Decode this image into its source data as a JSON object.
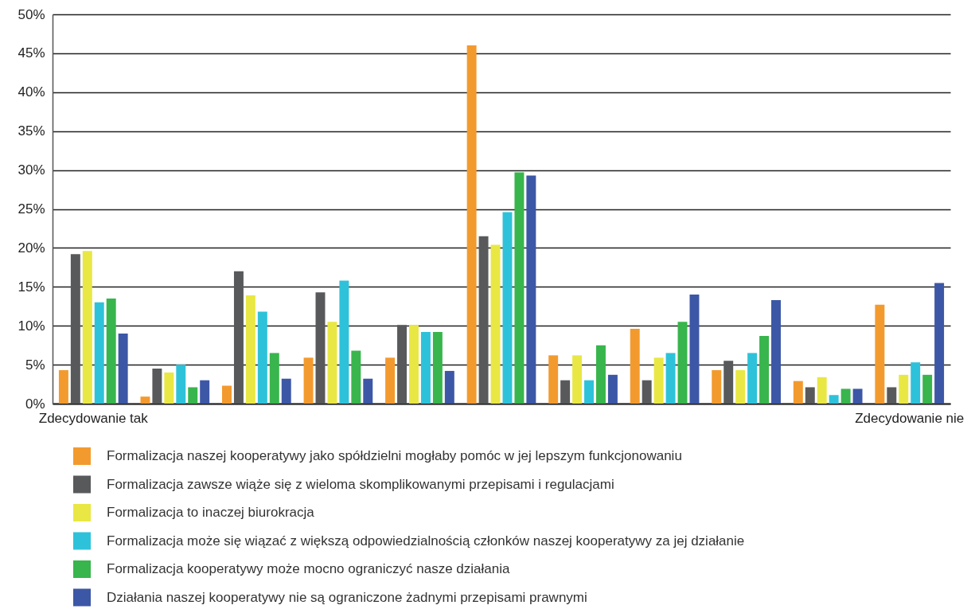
{
  "chart_data": {
    "type": "bar",
    "categories": [
      "Zdecydowanie tak",
      null,
      null,
      null,
      null,
      null,
      null,
      null,
      null,
      null,
      "Zdecydowanie nie"
    ],
    "series": [
      {
        "name": "Formalizacja naszej kooperatywy jako spółdzielni mogłaby pomóc w jej lepszym funkcjonowaniu",
        "color": "#f39a2e",
        "values": [
          4.3,
          0.9,
          2.3,
          5.9,
          5.9,
          46,
          6.2,
          9.6,
          4.3,
          2.9,
          12.7
        ]
      },
      {
        "name": "Formalizacja zawsze wiąże się z wieloma skomplikowanymi przepisami i regulacjami",
        "color": "#58595b",
        "values": [
          19.2,
          4.5,
          17,
          14.3,
          10.1,
          21.5,
          3,
          3,
          5.5,
          2.1,
          2.1
        ]
      },
      {
        "name": "Formalizacja to inaczej biurokracja",
        "color": "#e9e744",
        "values": [
          19.6,
          4,
          13.9,
          10.5,
          10.1,
          20.4,
          6.2,
          5.9,
          4.3,
          3.4,
          3.7
        ]
      },
      {
        "name": "Formalizacja może się wiązać z większą odpowiedzialnością członków naszej kooperatywy za jej działanie",
        "color": "#2ec2da",
        "values": [
          13,
          5,
          11.8,
          15.8,
          9.2,
          24.6,
          3,
          6.5,
          6.5,
          1.1,
          5.3
        ]
      },
      {
        "name": "Formalizacja kooperatywy może mocno ograniczyć nasze działania",
        "color": "#38b54c",
        "values": [
          13.5,
          2.1,
          6.5,
          6.8,
          9.2,
          29.7,
          7.5,
          10.5,
          8.7,
          1.9,
          3.7
        ]
      },
      {
        "name": "Działania naszej kooperatywy nie są ograniczone żadnymi przepisami prawnymi",
        "color": "#3c57a6",
        "values": [
          9,
          3,
          3.2,
          3.2,
          4.2,
          29.3,
          3.7,
          14,
          13.3,
          1.9,
          15.5
        ]
      }
    ],
    "ylim": [
      0,
      50
    ],
    "yticks": [
      {
        "value": 0,
        "label": "0%"
      },
      {
        "value": 5,
        "label": "5%"
      },
      {
        "value": 10,
        "label": "10%"
      },
      {
        "value": 15,
        "label": "15%"
      },
      {
        "value": 20,
        "label": "20%"
      },
      {
        "value": 25,
        "label": "25%"
      },
      {
        "value": 30,
        "label": "30%"
      },
      {
        "value": 35,
        "label": "35%"
      },
      {
        "value": 40,
        "label": "40%"
      },
      {
        "value": 45,
        "label": "45%"
      },
      {
        "value": 50,
        "label": "50%"
      }
    ],
    "grid": "y",
    "legend": "bottom"
  }
}
